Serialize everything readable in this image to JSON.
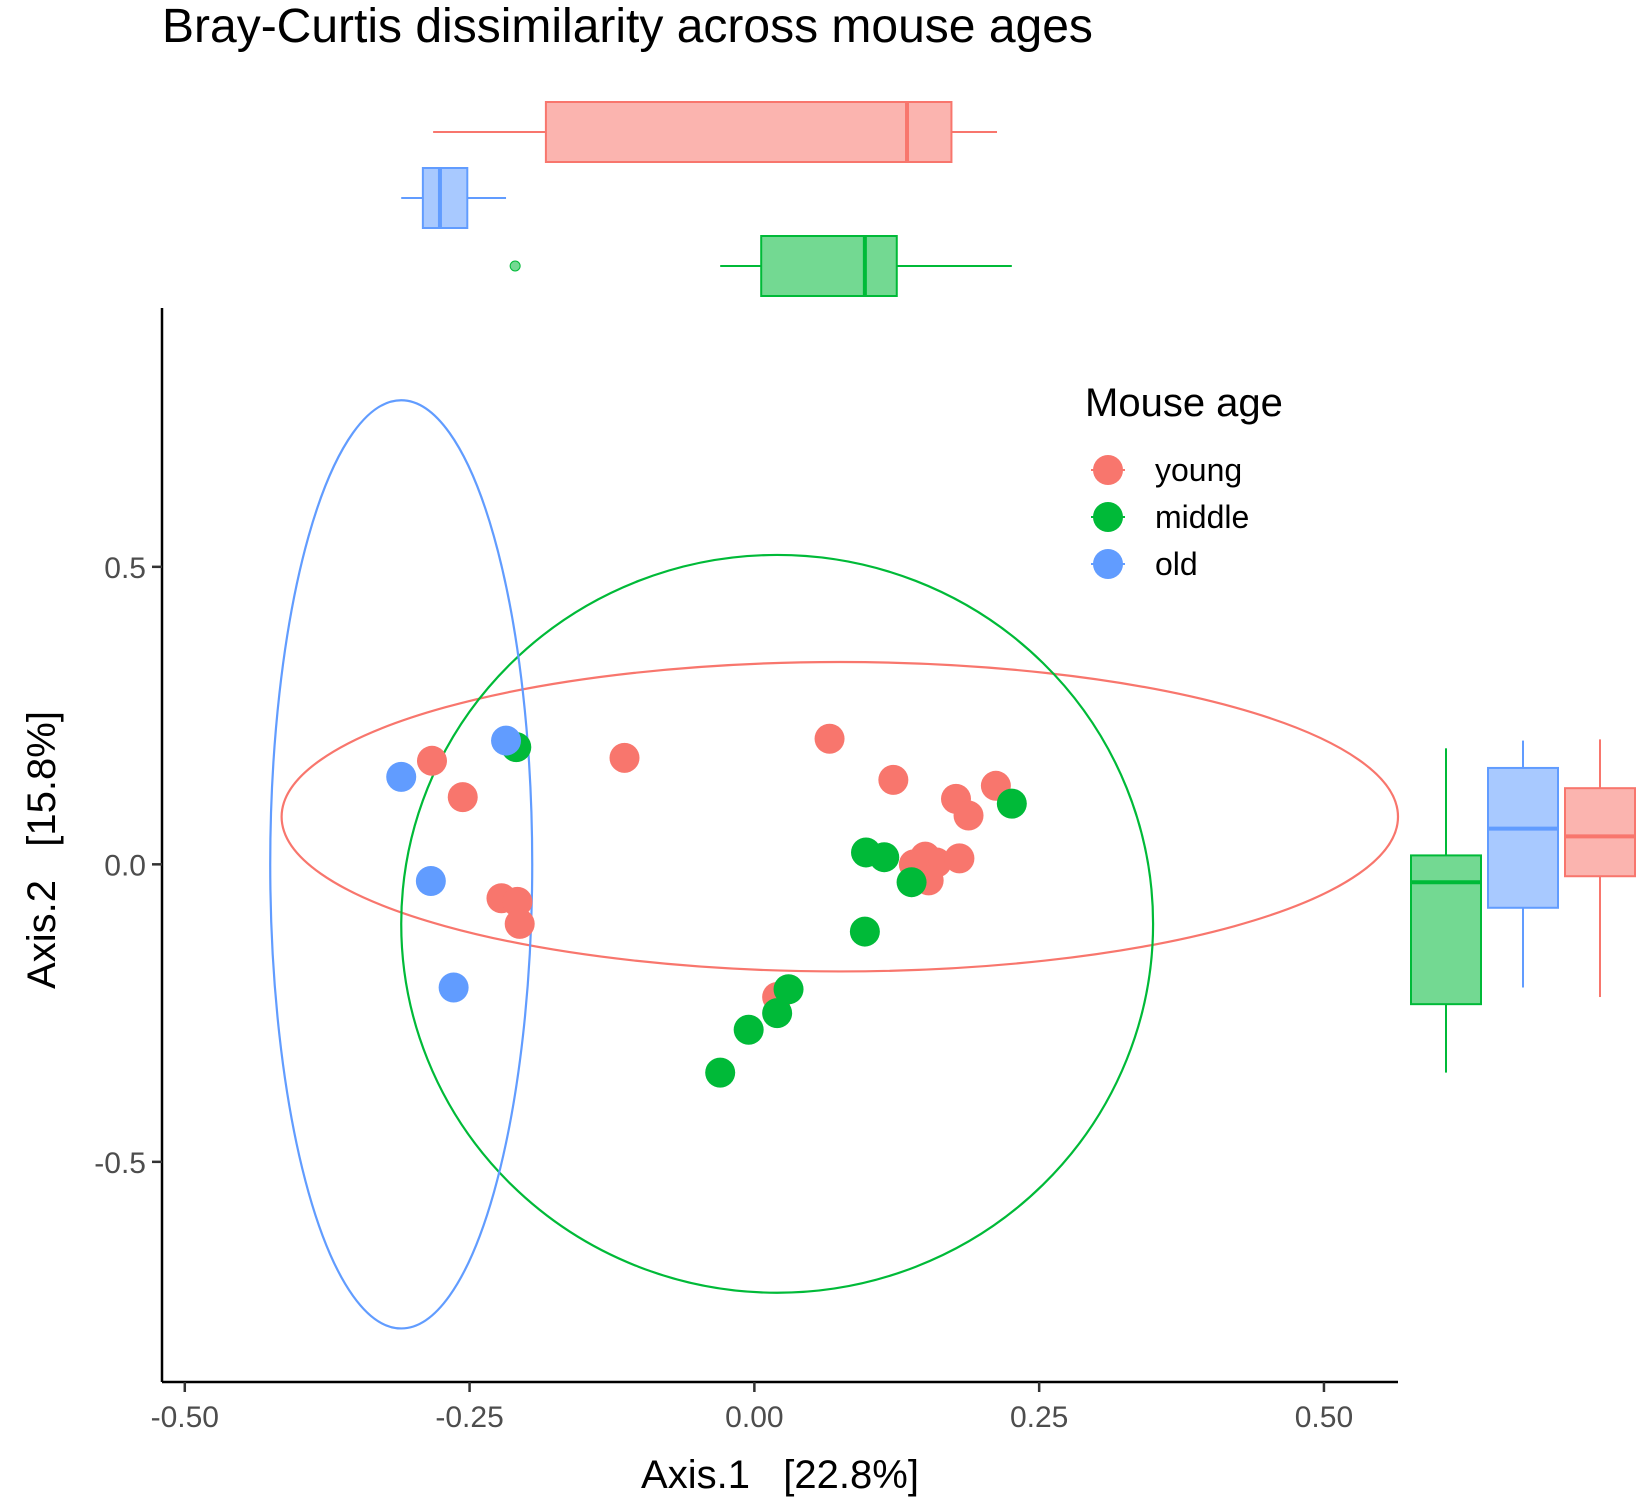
{
  "chart_data": {
    "type": "scatter",
    "title": "Bray-Curtis dissimilarity across mouse ages",
    "xlabel": "Axis.1   [22.8%]",
    "ylabel": "Axis.2   [15.8%]",
    "xlim": [
      -0.52,
      0.565
    ],
    "ylim": [
      -0.87,
      0.935
    ],
    "x_ticks": [
      {
        "value": -0.5,
        "label": "-0.50"
      },
      {
        "value": -0.25,
        "label": "-0.25"
      },
      {
        "value": 0.0,
        "label": "0.00"
      },
      {
        "value": 0.25,
        "label": "0.25"
      },
      {
        "value": 0.5,
        "label": "0.50"
      }
    ],
    "y_ticks": [
      {
        "value": 0.5,
        "label": "0.5"
      },
      {
        "value": 0.0,
        "label": "0.0"
      },
      {
        "value": -0.5,
        "label": "-0.5"
      }
    ],
    "grid": false,
    "legend": {
      "title": "Mouse age",
      "placement": "top-right"
    },
    "series": [
      {
        "name": "young",
        "color": "#F8766D",
        "points": [
          [
            -0.283,
            0.174
          ],
          [
            -0.256,
            0.113
          ],
          [
            -0.114,
            0.179
          ],
          [
            0.066,
            0.211
          ],
          [
            0.122,
            0.142
          ],
          [
            0.212,
            0.132
          ],
          [
            0.177,
            0.11
          ],
          [
            0.188,
            0.082
          ],
          [
            -0.222,
            -0.057
          ],
          [
            -0.208,
            -0.063
          ],
          [
            -0.206,
            -0.1
          ],
          [
            0.15,
            0.013
          ],
          [
            0.16,
            0.003
          ],
          [
            0.14,
            0.0
          ],
          [
            0.153,
            -0.027
          ],
          [
            0.18,
            0.01
          ],
          [
            0.02,
            -0.223
          ]
        ],
        "ellipse": {
          "center": [
            0.075,
            0.08
          ],
          "semi_axes": [
            0.49,
            0.26
          ],
          "angle_deg": 0
        },
        "box_x": {
          "whisker_low": -0.282,
          "q1": -0.183,
          "median": 0.134,
          "q3": 0.173,
          "whisker_high": 0.213
        },
        "box_y": {
          "whisker_low": -0.223,
          "q1": -0.02,
          "median": 0.047,
          "q3": 0.128,
          "whisker_high": 0.21
        }
      },
      {
        "name": "middle",
        "color": "#00BA38",
        "points": [
          [
            -0.209,
            0.197
          ],
          [
            0.226,
            0.102
          ],
          [
            0.098,
            0.02
          ],
          [
            0.114,
            0.012
          ],
          [
            0.138,
            -0.03
          ],
          [
            0.097,
            -0.113
          ],
          [
            0.03,
            -0.21
          ],
          [
            0.02,
            -0.25
          ],
          [
            -0.005,
            -0.278
          ],
          [
            -0.03,
            -0.35
          ]
        ],
        "ellipse": {
          "center": [
            0.02,
            -0.1
          ],
          "semi_axes": [
            0.33,
            0.62
          ],
          "angle_deg": 0
        },
        "box_x": {
          "whisker_low": -0.03,
          "q1": 0.006,
          "median": 0.097,
          "q3": 0.125,
          "whisker_high": 0.226,
          "outliers": [
            -0.21
          ]
        },
        "box_y": {
          "whisker_low": -0.35,
          "q1": -0.235,
          "median": -0.03,
          "q3": 0.015,
          "whisker_high": 0.195
        }
      },
      {
        "name": "old",
        "color": "#619CFF",
        "points": [
          [
            -0.31,
            0.147
          ],
          [
            -0.218,
            0.208
          ],
          [
            -0.284,
            -0.028
          ],
          [
            -0.264,
            -0.207
          ]
        ],
        "ellipse": {
          "center": [
            -0.31,
            0.0
          ],
          "semi_axes": [
            0.115,
            0.78
          ],
          "angle_deg": 0
        },
        "box_x": {
          "whisker_low": -0.31,
          "q1": -0.291,
          "median": -0.276,
          "q3": -0.252,
          "whisker_high": -0.218
        },
        "box_y": {
          "whisker_low": -0.207,
          "q1": -0.073,
          "median": 0.06,
          "q3": 0.162,
          "whisker_high": 0.208
        }
      }
    ]
  }
}
